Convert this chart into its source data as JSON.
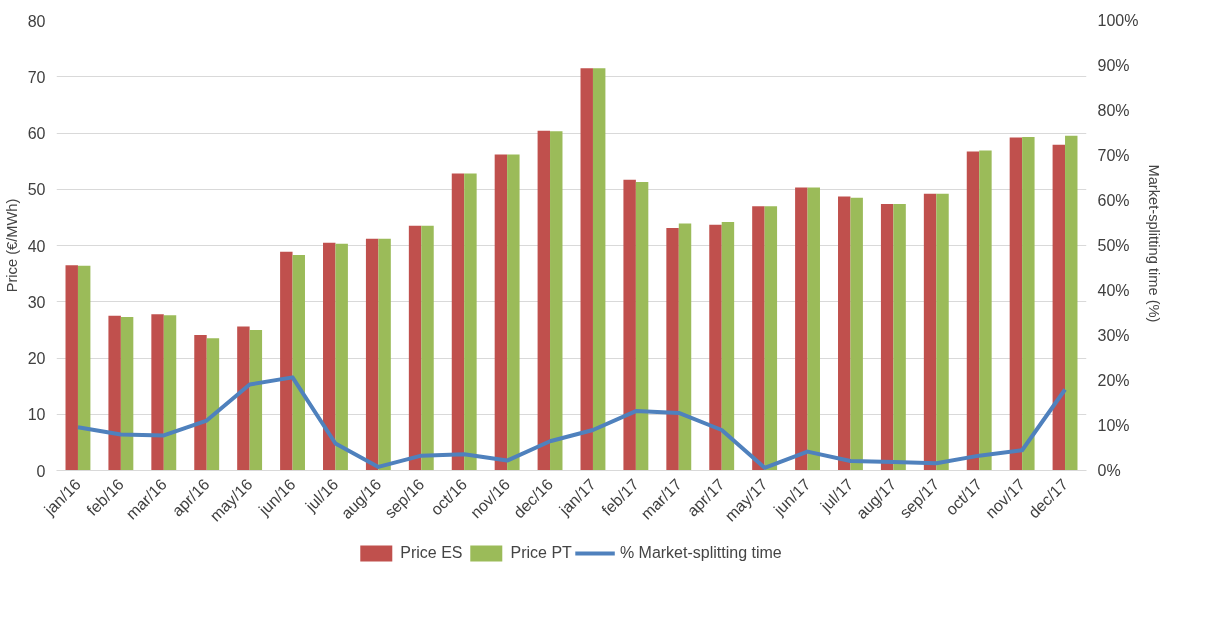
{
  "chart_data": {
    "type": "bar",
    "ylabel": "Price (€/MWh)",
    "y2label": "Market-splitting  time (%)",
    "categories": [
      "jan/16",
      "feb/16",
      "mar/16",
      "apr/16",
      "may/16",
      "jun/16",
      "jul/16",
      "aug/16",
      "sep/16",
      "oct/16",
      "nov/16",
      "dec/16",
      "jan/17",
      "feb/17",
      "mar/17",
      "apr/17",
      "may/17",
      "jun/17",
      "jul/17",
      "aug/17",
      "sep/17",
      "oct/17",
      "nov/17",
      "dec/17"
    ],
    "series": [
      {
        "name": "Price ES",
        "color": "#c0504d",
        "values": [
          36.5,
          27.5,
          27.8,
          24.1,
          25.6,
          38.9,
          40.5,
          41.2,
          43.5,
          52.8,
          56.2,
          60.4,
          71.5,
          51.7,
          43.1,
          43.7,
          47.0,
          50.3,
          48.7,
          47.4,
          49.2,
          56.7,
          59.2,
          57.9
        ]
      },
      {
        "name": "Price PT",
        "color": "#9bbb59",
        "values": [
          36.4,
          27.3,
          27.6,
          23.5,
          25.0,
          38.3,
          40.3,
          41.2,
          43.5,
          52.8,
          56.2,
          60.3,
          71.5,
          51.3,
          43.9,
          44.2,
          47.0,
          50.3,
          48.5,
          47.4,
          49.2,
          56.9,
          59.3,
          59.5
        ]
      },
      {
        "name": "% Market-splitting time",
        "type": "line",
        "axis": "y2",
        "color": "#4f81bd",
        "values": [
          9.6,
          8.0,
          7.8,
          11.1,
          19.1,
          20.7,
          6.0,
          0.8,
          3.3,
          3.6,
          2.2,
          6.5,
          9.0,
          13.2,
          12.8,
          9.0,
          0.6,
          4.2,
          2.1,
          1.9,
          1.6,
          3.3,
          4.5,
          18.0
        ]
      }
    ],
    "ylim": [
      0,
      80
    ],
    "yticks": [
      0,
      10,
      20,
      30,
      40,
      50,
      60,
      70,
      80
    ],
    "y2lim": [
      0,
      100
    ],
    "y2ticks": [
      {
        "value": 0,
        "label": "0%"
      },
      {
        "value": 10,
        "label": "10%"
      },
      {
        "value": 20,
        "label": "20%"
      },
      {
        "value": 30,
        "label": "30%"
      },
      {
        "value": 40,
        "label": "40%"
      },
      {
        "value": 50,
        "label": "50%"
      },
      {
        "value": 60,
        "label": "60%"
      },
      {
        "value": 70,
        "label": "70%"
      },
      {
        "value": 80,
        "label": "80%"
      },
      {
        "value": 90,
        "label": "90%"
      },
      {
        "value": 100,
        "label": "100%"
      }
    ],
    "grid": "y",
    "legend": "bottom",
    "marker": "none",
    "line_style": "solid"
  }
}
